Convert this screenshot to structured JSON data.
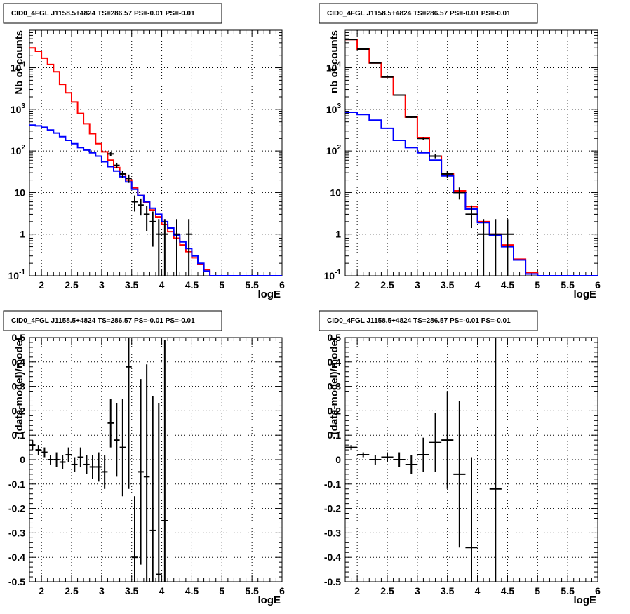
{
  "chart_data": [
    {
      "type": "line",
      "title": "CID0_4FGL J1158.5+4824 TS=286.57 PS=-0.01 PS=-0.01",
      "xlabel": "logE",
      "ylabel": "Nb of counts",
      "xlim": [
        1.8,
        6.0
      ],
      "ylim": [
        0.1,
        80000
      ],
      "yscale": "log",
      "grid": true,
      "x_ticks": [
        "2",
        "2.5",
        "3",
        "3.5",
        "4",
        "4.5",
        "5",
        "5.5",
        "6"
      ],
      "y_ticks": [
        "10^-1",
        "1",
        "10",
        "10^2",
        "10^3",
        "10^4"
      ],
      "bin_width": 0.1,
      "series": [
        {
          "role": "model_total",
          "color": "#ff0000",
          "bin_lo": [
            1.8,
            1.9,
            2.0,
            2.1,
            2.2,
            2.3,
            2.4,
            2.5,
            2.6,
            2.7,
            2.8,
            2.9,
            3.0,
            3.1,
            3.2,
            3.3,
            3.4,
            3.5,
            3.6,
            3.7,
            3.8,
            3.9,
            4.0,
            4.1,
            4.2,
            4.3,
            4.4,
            4.5,
            4.6,
            4.7,
            4.8,
            4.9,
            5.0,
            5.1,
            5.2,
            5.3,
            5.4,
            5.5,
            5.6,
            5.7,
            5.8,
            5.9
          ],
          "values": [
            30000,
            25000,
            17000,
            12000,
            8000,
            4000,
            2500,
            1500,
            800,
            450,
            260,
            150,
            95,
            60,
            40,
            28,
            20,
            13,
            8.5,
            5.8,
            3.8,
            2.6,
            1.7,
            1.15,
            0.8,
            0.55,
            0.38,
            0.27,
            0.19,
            0.14,
            0.1,
            0.1,
            0.1,
            0.1,
            0.1,
            0.1,
            0.1,
            0.1,
            0.1,
            0.1,
            0.1,
            0.1
          ]
        },
        {
          "role": "model_component",
          "color": "#0000ff",
          "bin_lo": [
            1.8,
            1.9,
            2.0,
            2.1,
            2.2,
            2.3,
            2.4,
            2.5,
            2.6,
            2.7,
            2.8,
            2.9,
            3.0,
            3.1,
            3.2,
            3.3,
            3.4,
            3.5,
            3.6,
            3.7,
            3.8,
            3.9,
            4.0,
            4.1,
            4.2,
            4.3,
            4.4,
            4.5,
            4.6,
            4.7,
            4.8,
            4.9,
            5.0,
            5.1,
            5.2,
            5.3,
            5.4,
            5.5,
            5.6,
            5.7,
            5.8,
            5.9
          ],
          "values": [
            420,
            400,
            370,
            320,
            270,
            220,
            180,
            150,
            120,
            105,
            90,
            75,
            55,
            42,
            33,
            24,
            18,
            12,
            8.5,
            6,
            4.2,
            3.0,
            2.0,
            1.4,
            0.95,
            0.65,
            0.45,
            0.3,
            0.2,
            0.13,
            0.1,
            0.1,
            0.1,
            0.1,
            0.1,
            0.1,
            0.1,
            0.1,
            0.1,
            0.1,
            0.1,
            0.1
          ]
        },
        {
          "role": "data",
          "color": "#000000",
          "x": [
            3.15,
            3.25,
            3.35,
            3.45,
            3.55,
            3.65,
            3.75,
            3.85,
            3.95,
            4.05,
            4.25,
            4.45
          ],
          "y": [
            85,
            45,
            28,
            22,
            6,
            5,
            3,
            2,
            1,
            1,
            1,
            1
          ],
          "yerr_lo": [
            9,
            7,
            5,
            5,
            2.5,
            2.2,
            1.8,
            1.5,
            0.9,
            0.9,
            0.9,
            0.9
          ],
          "yerr_hi": [
            9,
            7,
            5,
            5,
            2.5,
            2.2,
            1.8,
            1.5,
            1.3,
            1.3,
            1.3,
            1.3
          ]
        }
      ]
    },
    {
      "type": "line",
      "title": "CID0_4FGL J1158.5+4824 TS=286.57 PS=-0.01 PS=-0.01",
      "xlabel": "logE",
      "ylabel": "nb of counts",
      "xlim": [
        1.8,
        6.0
      ],
      "ylim": [
        0.1,
        80000
      ],
      "yscale": "log",
      "grid": true,
      "x_ticks": [
        "2",
        "2.5",
        "3",
        "3.5",
        "4",
        "4.5",
        "5",
        "5.5",
        "6"
      ],
      "y_ticks": [
        "10^-1",
        "1",
        "10",
        "10^2",
        "10^3",
        "10^4"
      ],
      "bin_width": 0.2,
      "series": [
        {
          "role": "model_total",
          "color": "#ff0000",
          "bin_lo": [
            1.8,
            2.0,
            2.2,
            2.4,
            2.6,
            2.8,
            3.0,
            3.2,
            3.4,
            3.6,
            3.8,
            4.0,
            4.2,
            4.4,
            4.6,
            4.8,
            5.0,
            5.2,
            5.4,
            5.6,
            5.8
          ],
          "values": [
            48000,
            28000,
            13000,
            6000,
            2200,
            650,
            210,
            75,
            28,
            11,
            4.6,
            2.0,
            1.0,
            0.55,
            0.25,
            0.12,
            0.1,
            0.1,
            0.1,
            0.1,
            0.1
          ]
        },
        {
          "role": "model_component",
          "color": "#0000ff",
          "bin_lo": [
            1.8,
            2.0,
            2.2,
            2.4,
            2.6,
            2.8,
            3.0,
            3.2,
            3.4,
            3.6,
            3.8,
            4.0,
            4.2,
            4.4,
            4.6,
            4.8,
            5.0,
            5.2,
            5.4,
            5.6,
            5.8
          ],
          "values": [
            850,
            750,
            550,
            350,
            180,
            120,
            90,
            60,
            25,
            10,
            4,
            1.9,
            0.95,
            0.5,
            0.24,
            0.11,
            0.1,
            0.1,
            0.1,
            0.1,
            0.1
          ]
        },
        {
          "role": "data",
          "color": "#000000",
          "x": [
            1.9,
            2.1,
            2.3,
            2.5,
            2.7,
            2.9,
            3.1,
            3.3,
            3.5,
            3.7,
            3.9,
            4.1,
            4.3,
            4.5
          ],
          "y": [
            48000,
            28000,
            13000,
            6000,
            2200,
            650,
            200,
            75,
            28,
            10,
            3,
            1,
            1,
            1
          ],
          "yerr_lo": [
            220,
            170,
            115,
            78,
            47,
            25,
            14,
            8.5,
            5.2,
            3.2,
            1.6,
            0.9,
            0.9,
            0.9
          ],
          "yerr_hi": [
            220,
            170,
            115,
            78,
            47,
            25,
            14,
            8.5,
            5.2,
            3.2,
            1.9,
            1.3,
            1.3,
            1.3
          ]
        }
      ]
    },
    {
      "type": "scatter",
      "title": "CID0_4FGL J1158.5+4824 TS=286.57 PS=-0.01 PS=-0.01",
      "xlabel": "logE",
      "ylabel": "(data-model)/model",
      "xlim": [
        1.8,
        6.0
      ],
      "ylim": [
        -0.5,
        0.5
      ],
      "grid": true,
      "x_ticks": [
        "2",
        "2.5",
        "3",
        "3.5",
        "4",
        "4.5",
        "5",
        "5.5",
        "6"
      ],
      "y_ticks": [
        "-0.5",
        "-0.4",
        "-0.3",
        "-0.2",
        "-0.1",
        "0",
        "0.1",
        "0.2",
        "0.3",
        "0.4",
        "0.5"
      ],
      "xerr": 0.05,
      "series": [
        {
          "role": "residual",
          "color": "#000000",
          "x": [
            1.85,
            1.95,
            2.05,
            2.15,
            2.25,
            2.35,
            2.45,
            2.55,
            2.65,
            2.75,
            2.85,
            2.95,
            3.05,
            3.15,
            3.25,
            3.35,
            3.45,
            3.55,
            3.65,
            3.75,
            3.85,
            3.95,
            4.05
          ],
          "y": [
            0.06,
            0.04,
            0.03,
            0.0,
            0.0,
            -0.01,
            0.02,
            -0.02,
            0.01,
            -0.02,
            -0.03,
            -0.03,
            -0.05,
            0.15,
            0.08,
            0.05,
            0.38,
            -0.4,
            -0.05,
            -0.07,
            -0.29,
            -0.47,
            -0.25
          ],
          "yerr": [
            0.02,
            0.02,
            0.02,
            0.02,
            0.03,
            0.03,
            0.03,
            0.03,
            0.04,
            0.04,
            0.05,
            0.06,
            0.07,
            0.1,
            0.15,
            0.2,
            0.5,
            0.25,
            0.38,
            0.46,
            0.55,
            0.7,
            0.74
          ]
        }
      ]
    },
    {
      "type": "scatter",
      "title": "CID0_4FGL J1158.5+4824 TS=286.57 PS=-0.01 PS=-0.01",
      "xlabel": "logE",
      "ylabel": "(data-model)/model",
      "xlim": [
        1.8,
        6.0
      ],
      "ylim": [
        -0.5,
        0.5
      ],
      "grid": true,
      "x_ticks": [
        "2",
        "2.5",
        "3",
        "3.5",
        "4",
        "4.5",
        "5",
        "5.5",
        "6"
      ],
      "y_ticks": [
        "-0.5",
        "-0.4",
        "-0.3",
        "-0.2",
        "-0.1",
        "0",
        "0.1",
        "0.2",
        "0.3",
        "0.4",
        "0.5"
      ],
      "xerr": 0.1,
      "series": [
        {
          "role": "residual",
          "color": "#000000",
          "x": [
            1.9,
            2.1,
            2.3,
            2.5,
            2.7,
            2.9,
            3.1,
            3.3,
            3.5,
            3.7,
            3.9,
            4.3
          ],
          "y": [
            0.05,
            0.02,
            0.0,
            0.01,
            0.0,
            -0.02,
            0.02,
            0.07,
            0.08,
            -0.06,
            -0.36,
            -0.12
          ],
          "yerr": [
            0.01,
            0.01,
            0.02,
            0.02,
            0.03,
            0.04,
            0.07,
            0.12,
            0.2,
            0.3,
            0.37,
            0.7
          ]
        }
      ]
    }
  ]
}
